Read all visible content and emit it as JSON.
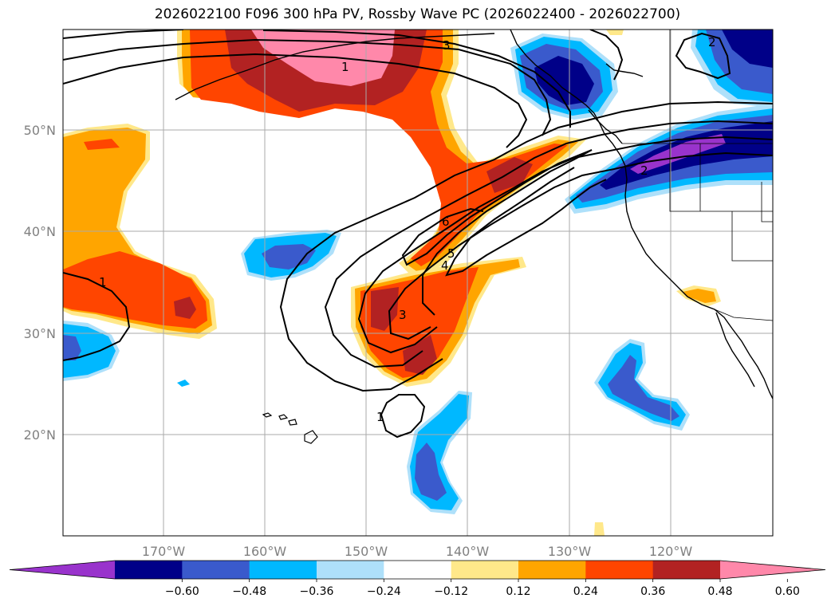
{
  "title": "2026022100 F096 300 hPa PV, Rossby Wave PC (2026022400 - 2026022700)",
  "latitude_labels": [
    "50°N",
    "40°N",
    "30°N",
    "20°N"
  ],
  "longitude_labels": [
    "170°W",
    "160°W",
    "150°W",
    "140°W",
    "130°W",
    "120°W"
  ],
  "contour_labels": [
    "3",
    "1",
    "1",
    "6",
    "5",
    "4",
    "3",
    "1",
    "2",
    "2"
  ],
  "colorbar": {
    "tick_labels": [
      "−0.60",
      "−0.48",
      "−0.36",
      "−0.24",
      "−0.12",
      "0.12",
      "0.24",
      "0.36",
      "0.48",
      "0.60"
    ],
    "colors": [
      "#9933cc",
      "#000088",
      "#3a5acc",
      "#00b8ff",
      "#aee0fa",
      "#ffffff",
      "#ffe88a",
      "#ffa500",
      "#ff4500",
      "#b22222",
      "#ff88aa"
    ],
    "extend": "both"
  }
}
